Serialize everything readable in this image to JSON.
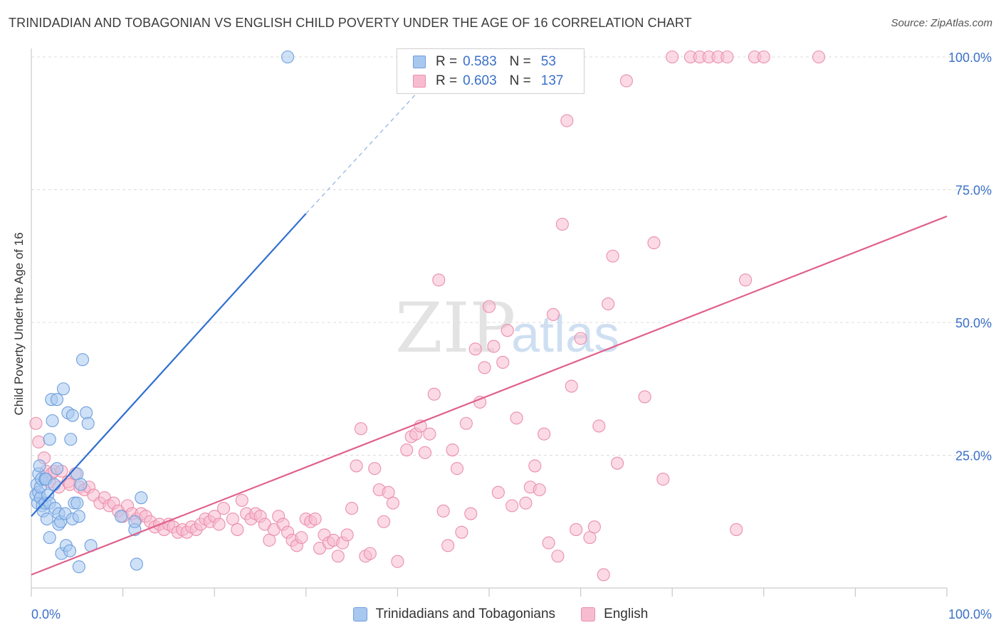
{
  "header": {
    "title": "TRINIDADIAN AND TOBAGONIAN VS ENGLISH CHILD POVERTY UNDER THE AGE OF 16 CORRELATION CHART",
    "source": "Source: ZipAtlas.com"
  },
  "watermark": {
    "zip": "ZIP",
    "atlas": "atlas"
  },
  "legend": {
    "r_label": "R =",
    "n_label": "N =",
    "rows": [
      {
        "r": "0.583",
        "n": "53"
      },
      {
        "r": "0.603",
        "n": "137"
      }
    ]
  },
  "colors": {
    "blue_fill": "#a8c8f0",
    "blue_stroke": "#6f9fdd",
    "blue_line": "#2f6fd0",
    "pink_fill": "#f7bccf",
    "pink_stroke": "#ea8fab",
    "pink_line": "#e0608b",
    "tick_label": "#3a70c8",
    "grid": "#dcdcdc"
  },
  "chart_data": {
    "type": "scatter",
    "title": "TRINIDADIAN AND TOBAGONIAN VS ENGLISH CHILD POVERTY UNDER THE AGE OF 16 CORRELATION CHART",
    "xlabel": "",
    "ylabel": "Child Poverty Under the Age of 16",
    "xlim": [
      0,
      100
    ],
    "ylim": [
      0,
      100
    ],
    "x_tick_labels": [
      "0.0%",
      "100.0%"
    ],
    "y_ticks": [
      25,
      50,
      75,
      100
    ],
    "y_tick_labels": [
      "25.0%",
      "50.0%",
      "75.0%",
      "100.0%"
    ],
    "grid": true,
    "series": [
      {
        "name": "Trinidadians and Tobagonians",
        "R": 0.583,
        "N": 53,
        "trend": {
          "x0": 0,
          "y0": 13.5,
          "x1": 30,
          "y1": 70.5,
          "dashed_to_x": 42,
          "dashed_to_y": 93
        },
        "points": [
          [
            0.5,
            17.5
          ],
          [
            0.6,
            19.5
          ],
          [
            0.7,
            16
          ],
          [
            0.8,
            21.5
          ],
          [
            0.8,
            18
          ],
          [
            0.9,
            23
          ],
          [
            1,
            17
          ],
          [
            1,
            19
          ],
          [
            1.1,
            20.5
          ],
          [
            1.2,
            15.5
          ],
          [
            1.3,
            14.5
          ],
          [
            1.5,
            16
          ],
          [
            1.5,
            20.5
          ],
          [
            1.6,
            20.5
          ],
          [
            1.7,
            13
          ],
          [
            1.8,
            17.5
          ],
          [
            2,
            28
          ],
          [
            2,
            9.5
          ],
          [
            2,
            16
          ],
          [
            2.2,
            35.5
          ],
          [
            2.3,
            31.5
          ],
          [
            2.5,
            19.5
          ],
          [
            2.6,
            15
          ],
          [
            2.8,
            22.5
          ],
          [
            2.8,
            35.5
          ],
          [
            3,
            12
          ],
          [
            3,
            14
          ],
          [
            3.2,
            12.5
          ],
          [
            3.3,
            6.5
          ],
          [
            3.5,
            37.5
          ],
          [
            3.7,
            14
          ],
          [
            3.8,
            8
          ],
          [
            4,
            33
          ],
          [
            4.2,
            7
          ],
          [
            4.3,
            28
          ],
          [
            4.5,
            32.5
          ],
          [
            4.5,
            13
          ],
          [
            4.7,
            16
          ],
          [
            5,
            16
          ],
          [
            5,
            21.5
          ],
          [
            5.2,
            13.5
          ],
          [
            5.2,
            4
          ],
          [
            5.4,
            19.5
          ],
          [
            5.6,
            43
          ],
          [
            6,
            33
          ],
          [
            6.2,
            31
          ],
          [
            6.5,
            8
          ],
          [
            9.8,
            13.5
          ],
          [
            11.5,
            4.5
          ],
          [
            11.3,
            11
          ],
          [
            11.3,
            12.5
          ],
          [
            12,
            17
          ],
          [
            28,
            100
          ]
        ]
      },
      {
        "name": "English",
        "R": 0.603,
        "N": 137,
        "trend": {
          "x0": 0,
          "y0": 2.5,
          "x1": 100,
          "y1": 70
        },
        "points": [
          [
            0.5,
            31
          ],
          [
            0.8,
            27.5
          ],
          [
            1.4,
            24.5
          ],
          [
            1.6,
            22
          ],
          [
            2,
            20
          ],
          [
            2.2,
            21.5
          ],
          [
            2.5,
            22
          ],
          [
            3,
            19
          ],
          [
            3.3,
            22
          ],
          [
            4,
            20
          ],
          [
            4.2,
            19.5
          ],
          [
            4.8,
            21.5
          ],
          [
            5.3,
            19
          ],
          [
            5.8,
            18.5
          ],
          [
            6.3,
            19
          ],
          [
            6.8,
            17.5
          ],
          [
            7.5,
            16
          ],
          [
            8,
            17
          ],
          [
            8.5,
            15.5
          ],
          [
            9,
            16
          ],
          [
            9.5,
            14.5
          ],
          [
            10,
            13.5
          ],
          [
            10.5,
            15.5
          ],
          [
            11,
            14
          ],
          [
            11.5,
            13
          ],
          [
            12,
            14
          ],
          [
            12.5,
            13.5
          ],
          [
            13,
            12.5
          ],
          [
            13.5,
            11.5
          ],
          [
            14,
            12
          ],
          [
            14.5,
            11
          ],
          [
            15,
            12
          ],
          [
            15.5,
            11.5
          ],
          [
            16,
            10.5
          ],
          [
            16.5,
            11
          ],
          [
            17,
            10.5
          ],
          [
            17.5,
            11.5
          ],
          [
            18,
            11
          ],
          [
            18.5,
            12
          ],
          [
            19,
            13
          ],
          [
            19.5,
            12.5
          ],
          [
            20,
            13.5
          ],
          [
            20.5,
            12
          ],
          [
            21,
            15
          ],
          [
            22,
            13
          ],
          [
            22.5,
            11
          ],
          [
            23,
            16.5
          ],
          [
            23.5,
            14
          ],
          [
            24,
            13
          ],
          [
            24.5,
            14
          ],
          [
            25,
            13.5
          ],
          [
            25.5,
            12
          ],
          [
            26,
            9
          ],
          [
            26.5,
            11
          ],
          [
            27,
            13.5
          ],
          [
            27.5,
            12
          ],
          [
            28,
            10.5
          ],
          [
            28.5,
            9
          ],
          [
            29,
            8
          ],
          [
            29.5,
            9.5
          ],
          [
            30,
            13
          ],
          [
            30.5,
            12.5
          ],
          [
            31,
            13
          ],
          [
            31.5,
            7.5
          ],
          [
            32,
            10
          ],
          [
            32.5,
            8.5
          ],
          [
            33,
            9
          ],
          [
            33.5,
            6
          ],
          [
            34,
            8.5
          ],
          [
            34.5,
            10
          ],
          [
            35,
            15
          ],
          [
            35.5,
            23
          ],
          [
            36,
            30
          ],
          [
            36.5,
            6
          ],
          [
            37,
            6.5
          ],
          [
            37.5,
            22.5
          ],
          [
            38,
            18.5
          ],
          [
            38.5,
            12.5
          ],
          [
            39,
            18
          ],
          [
            39.5,
            16
          ],
          [
            40,
            5
          ],
          [
            41,
            26
          ],
          [
            41.5,
            28.5
          ],
          [
            42,
            29
          ],
          [
            42.5,
            30.5
          ],
          [
            43,
            25.5
          ],
          [
            43.5,
            29
          ],
          [
            44,
            36.5
          ],
          [
            44.5,
            58
          ],
          [
            45,
            14.5
          ],
          [
            45.5,
            8
          ],
          [
            46,
            26
          ],
          [
            46.5,
            22.5
          ],
          [
            47,
            10.5
          ],
          [
            47.5,
            31
          ],
          [
            48,
            14
          ],
          [
            48.5,
            45
          ],
          [
            49,
            35
          ],
          [
            49.5,
            41.5
          ],
          [
            50,
            53
          ],
          [
            50.5,
            45.5
          ],
          [
            51,
            18
          ],
          [
            51.5,
            42.5
          ],
          [
            52,
            48.5
          ],
          [
            52.5,
            15.5
          ],
          [
            53,
            32
          ],
          [
            54,
            16
          ],
          [
            54.5,
            19
          ],
          [
            55,
            23
          ],
          [
            55.5,
            18.5
          ],
          [
            56,
            29
          ],
          [
            56.5,
            8.5
          ],
          [
            57,
            51.5
          ],
          [
            57.5,
            6
          ],
          [
            58,
            68.5
          ],
          [
            58.5,
            88
          ],
          [
            59,
            38
          ],
          [
            59.5,
            11
          ],
          [
            60,
            47
          ],
          [
            61,
            9.5
          ],
          [
            61.5,
            11.5
          ],
          [
            62,
            30.5
          ],
          [
            62.5,
            2.5
          ],
          [
            63,
            53.5
          ],
          [
            63.5,
            62.5
          ],
          [
            64,
            23.5
          ],
          [
            65,
            95.5
          ],
          [
            67,
            36
          ],
          [
            68,
            65
          ],
          [
            69,
            20.5
          ],
          [
            70,
            100
          ],
          [
            72,
            100
          ],
          [
            73,
            100
          ],
          [
            74,
            100
          ],
          [
            75,
            100
          ],
          [
            76,
            100
          ],
          [
            77,
            11
          ],
          [
            78,
            58
          ],
          [
            79,
            100
          ],
          [
            80,
            100
          ],
          [
            86,
            100
          ]
        ]
      }
    ]
  }
}
